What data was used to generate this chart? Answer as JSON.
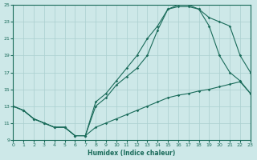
{
  "xlabel": "Humidex (Indice chaleur)",
  "bg_color": "#cde8e8",
  "grid_color": "#aacfcf",
  "line_color": "#1a6b5a",
  "xlim": [
    0,
    23
  ],
  "ylim": [
    9,
    25
  ],
  "xticks": [
    0,
    1,
    2,
    3,
    4,
    5,
    6,
    7,
    8,
    9,
    10,
    11,
    12,
    13,
    14,
    15,
    16,
    17,
    18,
    19,
    20,
    21,
    22,
    23
  ],
  "yticks": [
    9,
    11,
    13,
    15,
    17,
    19,
    21,
    23,
    25
  ],
  "line1_x": [
    0,
    1,
    2,
    3,
    4,
    5,
    6,
    7,
    8,
    9,
    10,
    11,
    12,
    13,
    14,
    15,
    16,
    17,
    18,
    19,
    20,
    21,
    22,
    23
  ],
  "line1_y": [
    13,
    12.5,
    11.5,
    11,
    10.5,
    10.5,
    9.5,
    9.5,
    10.5,
    11,
    11.5,
    12,
    12.5,
    13,
    13.5,
    14,
    14.3,
    14.5,
    14.8,
    15,
    15.3,
    15.6,
    15.9,
    14.5
  ],
  "line2_x": [
    0,
    1,
    2,
    3,
    4,
    5,
    6,
    7,
    8,
    9,
    10,
    11,
    12,
    13,
    14,
    15,
    16,
    17,
    18,
    19,
    20,
    21,
    22,
    23
  ],
  "line2_y": [
    13,
    12.5,
    11.5,
    11,
    10.5,
    10.5,
    9.5,
    9.5,
    13.5,
    14.5,
    16,
    17.5,
    19,
    21,
    22.5,
    24.5,
    24.8,
    24.8,
    24.5,
    22.5,
    19,
    17,
    16,
    14.5
  ],
  "line3_x": [
    0,
    1,
    2,
    3,
    4,
    5,
    6,
    7,
    8,
    9,
    10,
    11,
    12,
    13,
    14,
    15,
    16,
    17,
    18,
    19,
    20,
    21,
    22,
    23
  ],
  "line3_y": [
    13,
    12.5,
    11.5,
    11,
    10.5,
    10.5,
    9.5,
    9.5,
    13,
    14,
    15.5,
    16.5,
    17.5,
    19,
    22,
    24.5,
    25,
    25,
    24.5,
    23.5,
    23,
    22.5,
    19,
    17
  ]
}
